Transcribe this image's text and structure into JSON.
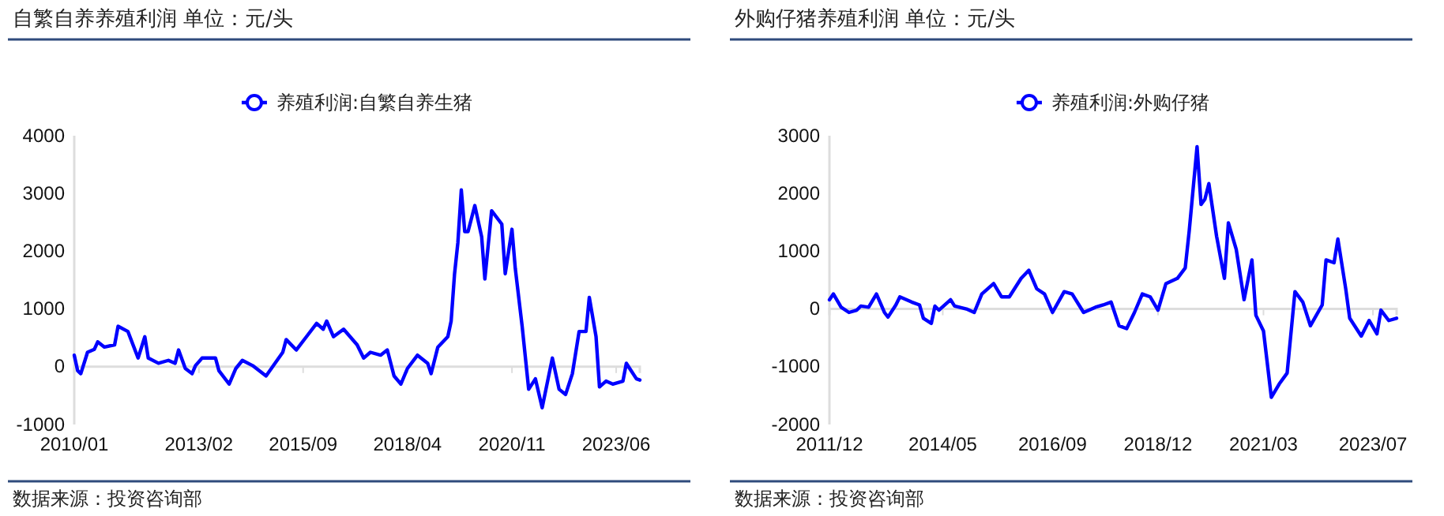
{
  "chart_data": [
    {
      "type": "line",
      "title": "自繁自养养殖利润 单位：元/头",
      "legend": "top",
      "annotations": [
        "数据来源：投资咨询部"
      ],
      "xlim": [
        "2010-01",
        "2024-01"
      ],
      "xticks": [
        {
          "value": "2010-01",
          "label": "2010/01"
        },
        {
          "value": "2013-02",
          "label": "2013/02"
        },
        {
          "value": "2015-09",
          "label": "2015/09"
        },
        {
          "value": "2018-04",
          "label": "2018/04"
        },
        {
          "value": "2020-11",
          "label": "2020/11"
        },
        {
          "value": "2023-06",
          "label": "2023/06"
        }
      ],
      "ylim": [
        -1000,
        4000
      ],
      "yticks": [
        -1000,
        0,
        1000,
        2000,
        3000,
        4000
      ],
      "x": [
        "2010-01",
        "2010-02",
        "2010-03",
        "2010-05",
        "2010-07",
        "2010-08",
        "2010-10",
        "2011-01",
        "2011-02",
        "2011-05",
        "2011-08",
        "2011-10",
        "2011-11",
        "2012-02",
        "2012-05",
        "2012-07",
        "2012-08",
        "2012-10",
        "2012-12",
        "2013-01",
        "2013-03",
        "2013-07",
        "2013-08",
        "2013-11",
        "2014-01",
        "2014-03",
        "2014-06",
        "2014-10",
        "2015-03",
        "2015-04",
        "2015-07",
        "2015-10",
        "2016-01",
        "2016-03",
        "2016-04",
        "2016-06",
        "2016-09",
        "2017-01",
        "2017-03",
        "2017-05",
        "2017-08",
        "2017-10",
        "2017-12",
        "2018-02",
        "2018-04",
        "2018-07",
        "2018-10",
        "2018-11",
        "2019-01",
        "2019-04",
        "2019-05",
        "2019-06",
        "2019-07",
        "2019-08",
        "2019-09",
        "2019-10",
        "2019-12",
        "2020-02",
        "2020-03",
        "2020-05",
        "2020-08",
        "2020-09",
        "2020-11",
        "2020-12",
        "2021-02",
        "2021-04",
        "2021-06",
        "2021-08",
        "2021-11",
        "2022-01",
        "2022-03",
        "2022-05",
        "2022-07",
        "2022-09",
        "2022-10",
        "2022-12",
        "2023-01",
        "2023-03",
        "2023-05",
        "2023-08",
        "2023-09",
        "2023-10",
        "2023-12",
        "2024-01"
      ],
      "series": [
        {
          "name": "养殖利润:自繁自养生猪",
          "color": "#0000ff",
          "values": [
            200,
            -70,
            -120,
            250,
            300,
            430,
            340,
            380,
            700,
            610,
            150,
            520,
            150,
            60,
            110,
            60,
            290,
            -30,
            -120,
            20,
            150,
            150,
            -70,
            -300,
            -30,
            110,
            20,
            -160,
            250,
            470,
            290,
            520,
            750,
            650,
            790,
            520,
            650,
            380,
            150,
            250,
            200,
            290,
            -160,
            -300,
            -30,
            200,
            60,
            -120,
            340,
            520,
            790,
            1610,
            2150,
            3060,
            2340,
            2340,
            2790,
            2250,
            1520,
            2700,
            2470,
            1610,
            2380,
            1700,
            700,
            -390,
            -210,
            -710,
            150,
            -390,
            -480,
            -120,
            610,
            610,
            1200,
            520,
            -350,
            -250,
            -300,
            -250,
            60,
            -30,
            -210,
            -230
          ]
        }
      ]
    },
    {
      "type": "line",
      "title": "外购仔猪养殖利润 单位：元/头",
      "legend": "top",
      "annotations": [
        "数据来源：投资咨询部"
      ],
      "xlim": [
        "2011-12",
        "2024-01"
      ],
      "xticks": [
        {
          "value": "2011-12",
          "label": "2011/12"
        },
        {
          "value": "2014-05",
          "label": "2014/05"
        },
        {
          "value": "2016-09",
          "label": "2016/09"
        },
        {
          "value": "2018-12",
          "label": "2018/12"
        },
        {
          "value": "2021-03",
          "label": "2021/03"
        },
        {
          "value": "2023-07",
          "label": "2023/07"
        }
      ],
      "ylim": [
        -2000,
        3000
      ],
      "yticks": [
        -2000,
        -1000,
        0,
        1000,
        2000,
        3000
      ],
      "x": [
        "2011-12",
        "2012-01",
        "2012-03",
        "2012-05",
        "2012-07",
        "2012-08",
        "2012-10",
        "2012-12",
        "2013-02",
        "2013-03",
        "2013-05",
        "2013-06",
        "2013-09",
        "2013-11",
        "2013-12",
        "2014-02",
        "2014-03",
        "2014-04",
        "2014-07",
        "2014-08",
        "2014-11",
        "2015-01",
        "2015-03",
        "2015-06",
        "2015-08",
        "2015-10",
        "2016-01",
        "2016-03",
        "2016-05",
        "2016-07",
        "2016-09",
        "2016-12",
        "2017-02",
        "2017-05",
        "2017-08",
        "2017-10",
        "2017-12",
        "2018-02",
        "2018-04",
        "2018-06",
        "2018-08",
        "2018-10",
        "2018-12",
        "2019-02",
        "2019-05",
        "2019-07",
        "2019-08",
        "2019-10",
        "2019-11",
        "2019-12",
        "2020-01",
        "2020-03",
        "2020-05",
        "2020-06",
        "2020-08",
        "2020-10",
        "2020-12",
        "2021-01",
        "2021-03",
        "2021-05",
        "2021-07",
        "2021-09",
        "2021-11",
        "2022-01",
        "2022-03",
        "2022-06",
        "2022-07",
        "2022-09",
        "2022-10",
        "2022-12",
        "2023-01",
        "2023-04",
        "2023-06",
        "2023-08",
        "2023-09",
        "2023-11",
        "2024-01"
      ],
      "series": [
        {
          "name": "养殖利润:外购仔猪",
          "color": "#0000ff",
          "values": [
            160,
            260,
            30,
            -60,
            -20,
            50,
            30,
            260,
            -60,
            -140,
            70,
            210,
            120,
            70,
            -160,
            -250,
            50,
            -20,
            160,
            50,
            0,
            -60,
            260,
            440,
            210,
            210,
            530,
            670,
            350,
            260,
            -60,
            300,
            260,
            -60,
            30,
            70,
            120,
            -290,
            -340,
            -60,
            260,
            210,
            -20,
            440,
            530,
            710,
            1350,
            2810,
            1810,
            1900,
            2170,
            1260,
            530,
            1490,
            1030,
            160,
            850,
            -110,
            -380,
            -1530,
            -1300,
            -1110,
            300,
            120,
            -290,
            70,
            850,
            800,
            1210,
            350,
            -160,
            -470,
            -200,
            -430,
            -20,
            -200,
            -160
          ]
        }
      ]
    }
  ]
}
